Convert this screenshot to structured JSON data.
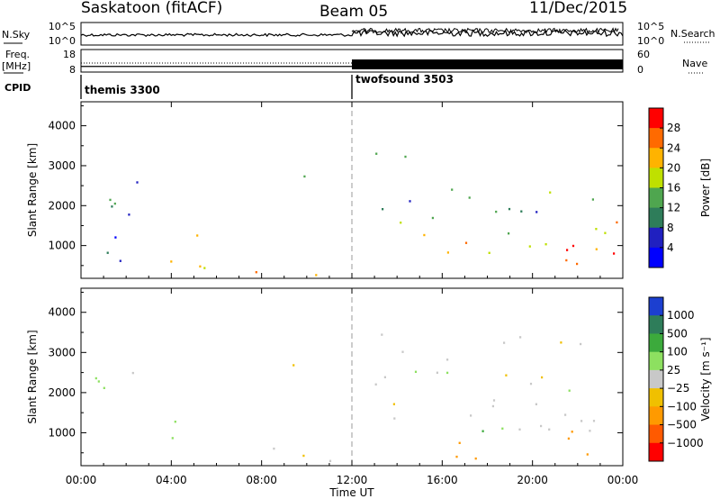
{
  "header": {
    "station": "Saskatoon (fitACF)",
    "beam": "Beam 05",
    "date": "11/Dec/2015"
  },
  "left_labels": {
    "nsky": "N.Sky",
    "freq_line1": "Freq.",
    "freq_line2": "[MHz]",
    "cpid": "CPID"
  },
  "right_labels": {
    "nsearch": "N.Search",
    "nave": "Nave"
  },
  "chart_data": [
    {
      "type": "line",
      "name": "noise-panel",
      "left_ticks": [
        "10^5",
        "10^0"
      ],
      "right_ticks": [
        "10^5",
        "10^0"
      ],
      "series": [
        {
          "name": "N.Sky",
          "style": "solid",
          "level": 0.35
        },
        {
          "name": "N.Search",
          "style": "dotted",
          "level": 0.4
        }
      ]
    },
    {
      "type": "line",
      "name": "freq-nave-panel",
      "left_ticks": [
        "18",
        "8"
      ],
      "right_ticks": [
        "60",
        "0"
      ],
      "series": [
        {
          "name": "Freq.",
          "style": "solid",
          "values": [
            {
              "x": "00:00",
              "y": 10.5
            },
            {
              "x": "12:00",
              "y": 10.5
            },
            {
              "x": "24:00",
              "y": 10.5
            }
          ]
        },
        {
          "name": "Nave",
          "style": "dotted",
          "values": [
            {
              "x": "00:00",
              "y": 25
            },
            {
              "x": "12:00",
              "y": 25
            }
          ]
        }
      ]
    },
    {
      "type": "table",
      "name": "cpid-panel",
      "segments": [
        {
          "start": "00:00",
          "label": "themis 3300"
        },
        {
          "start": "12:00",
          "label": "twofsound 3503"
        }
      ]
    },
    {
      "type": "heatmap",
      "name": "power",
      "ylabel": "Slant Range [km]",
      "ylim": [
        180,
        4600
      ],
      "yticks": [
        1000,
        2000,
        3000,
        4000
      ],
      "colorbar_label": "Power [dB]",
      "colorbar_ticks": [
        "28",
        "24",
        "20",
        "16",
        "12",
        "8",
        "4"
      ],
      "colorbar_colors": [
        "#ff0000",
        "#ff6a00",
        "#ffb300",
        "#bfe000",
        "#4fa64f",
        "#2e7d5a",
        "#2020c0",
        "#0000ff"
      ],
      "features": [
        {
          "t": [
            0.5,
            2.8
          ],
          "r": [
            1700,
            3000
          ],
          "power": 12,
          "note": "slanted band"
        },
        {
          "t": [
            2.0,
            3.0
          ],
          "r": [
            2300,
            2900
          ],
          "power": 8
        },
        {
          "t": [
            0.5,
            2.5
          ],
          "r": [
            300,
            1900
          ],
          "power": 6
        },
        {
          "t": [
            3.5,
            5.5
          ],
          "r": [
            400,
            1400
          ],
          "power": 20
        },
        {
          "t": [
            4.5,
            11.5
          ],
          "r": [
            180,
            600
          ],
          "power": 20
        },
        {
          "t": [
            5.5,
            8.0
          ],
          "r": [
            180,
            400
          ],
          "power": 28
        },
        {
          "t": [
            9.0,
            10.0
          ],
          "r": [
            2400,
            3500
          ],
          "power": 10
        },
        {
          "t": [
            13.0,
            15.0
          ],
          "r": [
            1500,
            3500
          ],
          "power": 10
        },
        {
          "t": [
            14.0,
            23.8
          ],
          "r": [
            500,
            1600
          ],
          "power": 20
        },
        {
          "t": [
            17.0,
            23.8
          ],
          "r": [
            400,
            1000
          ],
          "power": 28
        },
        {
          "t": [
            15.0,
            23.5
          ],
          "r": [
            1400,
            2400
          ],
          "power": 12
        }
      ]
    },
    {
      "type": "heatmap",
      "name": "velocity",
      "ylabel": "Slant Range [km]",
      "ylim": [
        180,
        4600
      ],
      "yticks": [
        1000,
        2000,
        3000,
        4000
      ],
      "xlabel": "Time UT",
      "xticks": [
        "00:00",
        "04:00",
        "08:00",
        "12:00",
        "16:00",
        "20:00",
        "00:00"
      ],
      "xlim": [
        0,
        24
      ],
      "colorbar_label": "Velocity [m s⁻¹]",
      "colorbar_ticks": [
        "1000",
        "500",
        "100",
        "25",
        "−25",
        "−100",
        "−500",
        "−1000"
      ],
      "colorbar_colors": [
        "#1c3fd0",
        "#2e7d5a",
        "#3caa3c",
        "#8de060",
        "#c8c8c8",
        "#f0c000",
        "#ff9a00",
        "#ff5a00",
        "#ff0000"
      ],
      "features": [
        {
          "t": [
            0.5,
            2.8
          ],
          "r": [
            1300,
            2800
          ],
          "velocity": 0,
          "note": "ground scatter"
        },
        {
          "t": [
            3.5,
            5.0
          ],
          "r": [
            500,
            1400
          ],
          "velocity": 100
        },
        {
          "t": [
            5.0,
            11.5
          ],
          "r": [
            180,
            600
          ],
          "velocity": -50
        },
        {
          "t": [
            9.0,
            10.0
          ],
          "r": [
            2400,
            3500
          ],
          "velocity": 0
        },
        {
          "t": [
            13.0,
            23.8
          ],
          "r": [
            1000,
            3500
          ],
          "velocity": 0,
          "note": "ground scatter"
        },
        {
          "t": [
            17.0,
            18.5
          ],
          "r": [
            600,
            1100
          ],
          "velocity": 100
        },
        {
          "t": [
            16.5,
            23.5
          ],
          "r": [
            300,
            1100
          ],
          "velocity": -200
        }
      ]
    }
  ]
}
